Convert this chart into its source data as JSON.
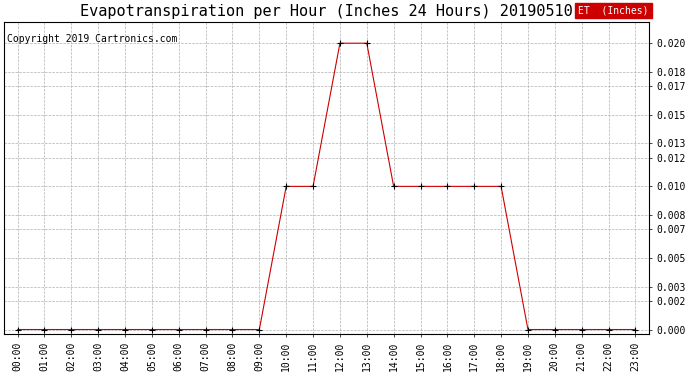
{
  "title": "Evapotranspiration per Hour (Inches 24 Hours) 20190510",
  "copyright": "Copyright 2019 Cartronics.com",
  "legend_label": "ET  (Inches)",
  "legend_bg": "#cc0000",
  "legend_text_color": "#ffffff",
  "line_color": "#cc0000",
  "marker_color": "#000000",
  "background_color": "#ffffff",
  "grid_color": "#b0b0b0",
  "hours": [
    "00:00",
    "01:00",
    "02:00",
    "03:00",
    "04:00",
    "05:00",
    "06:00",
    "07:00",
    "08:00",
    "09:00",
    "10:00",
    "11:00",
    "12:00",
    "13:00",
    "14:00",
    "15:00",
    "16:00",
    "17:00",
    "18:00",
    "19:00",
    "20:00",
    "21:00",
    "22:00",
    "23:00"
  ],
  "values": [
    0.0,
    0.0,
    0.0,
    0.0,
    0.0,
    0.0,
    0.0,
    0.0,
    0.0,
    0.0,
    0.01,
    0.01,
    0.02,
    0.02,
    0.01,
    0.01,
    0.01,
    0.01,
    0.01,
    0.0,
    0.0,
    0.0,
    0.0,
    0.0
  ],
  "ylim_min": -0.0003,
  "ylim_max": 0.0215,
  "yticks": [
    0.0,
    0.002,
    0.003,
    0.005,
    0.007,
    0.008,
    0.01,
    0.012,
    0.013,
    0.015,
    0.017,
    0.018,
    0.02
  ],
  "title_fontsize": 11,
  "axis_fontsize": 7,
  "copyright_fontsize": 7,
  "legend_fontsize": 7
}
